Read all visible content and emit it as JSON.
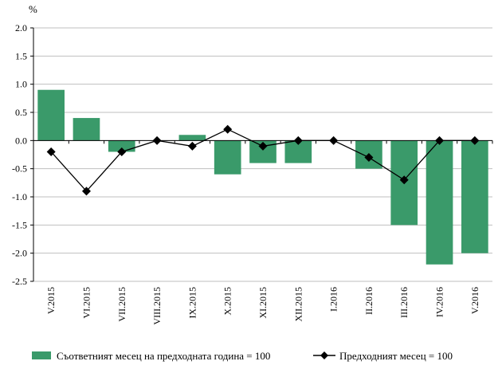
{
  "chart_data": {
    "type": "bar",
    "unit_label": "%",
    "categories": [
      "V.2015",
      "VI.2015",
      "VII.2015",
      "VIII.2015",
      "IX.2015",
      "X.2015",
      "XI.2015",
      "XII.2015",
      "I.2016",
      "II.2016",
      "III.2016",
      "IV.2016",
      "V.2016"
    ],
    "series": [
      {
        "name": "Съответният месец на предходната година = 100",
        "type": "bar",
        "color": "#3a9a6a",
        "values": [
          0.9,
          0.4,
          -0.2,
          0.0,
          0.1,
          -0.6,
          -0.4,
          -0.4,
          0.0,
          -0.5,
          -1.5,
          -2.2,
          -2.0
        ]
      },
      {
        "name": "Предходният месец = 100",
        "type": "line",
        "marker": "diamond",
        "color": "#000000",
        "values": [
          -0.2,
          -0.9,
          -0.2,
          0.0,
          -0.1,
          0.2,
          -0.1,
          0.0,
          0.0,
          -0.3,
          -0.7,
          0.0,
          0.0
        ]
      }
    ],
    "ylim": [
      -2.5,
      2.0
    ],
    "yticks": [
      "2.0",
      "1.5",
      "1.0",
      "0.5",
      "0.0",
      "-0.5",
      "-1.0",
      "-1.5",
      "-2.0",
      "-2.5"
    ],
    "grid": true,
    "legend_position": "bottom"
  }
}
